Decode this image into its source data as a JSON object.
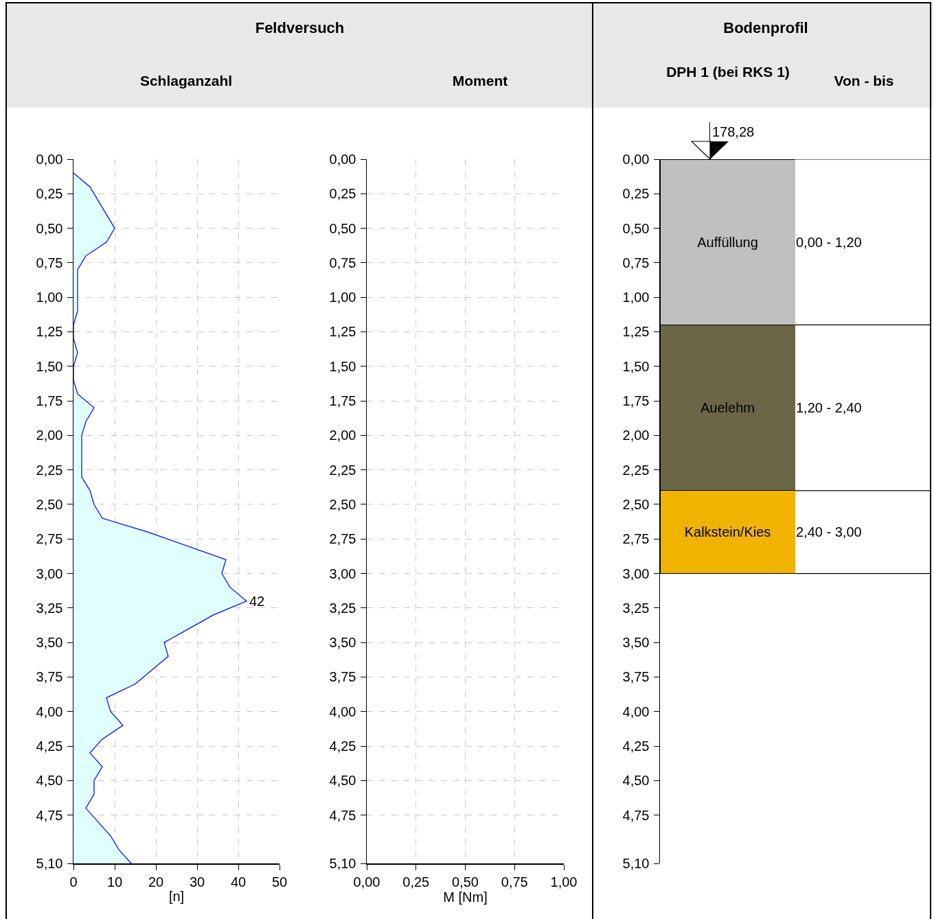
{
  "chart_data": [
    {
      "type": "area",
      "title": "Feldversuch",
      "subtitle": "Schlaganzahl",
      "xlabel": "[n]",
      "orientation": "horizontal",
      "x": [
        0.1,
        0.2,
        0.5,
        0.6,
        0.7,
        0.8,
        1.1,
        1.2,
        1.3,
        1.4,
        1.5,
        1.6,
        1.7,
        1.8,
        1.9,
        2.0,
        2.3,
        2.4,
        2.5,
        2.6,
        2.7,
        2.9,
        3.0,
        3.1,
        3.2,
        3.3,
        3.5,
        3.6,
        3.8,
        3.9,
        4.0,
        4.1,
        4.2,
        4.3,
        4.4,
        4.5,
        4.6,
        4.7,
        4.9,
        5.0,
        5.1
      ],
      "series": [
        {
          "color": "#0000ff",
          "values": [
            0,
            4,
            10,
            8,
            3,
            1,
            1,
            0,
            0,
            1,
            0,
            0,
            1,
            5,
            3,
            2,
            2,
            4,
            5,
            7,
            18,
            37,
            36,
            38,
            42,
            34,
            22,
            23,
            15,
            8,
            9,
            12,
            7,
            4,
            7,
            5,
            5,
            3,
            9,
            11,
            14
          ]
        }
      ],
      "annotations": [
        {
          "text": "42",
          "x": 42,
          "y": 3.2
        }
      ],
      "xlim": [
        0,
        50
      ],
      "xticks": [
        0,
        10,
        20,
        30,
        40,
        50
      ],
      "ylim": [
        5.1,
        0
      ],
      "yticks": [
        {
          "value": 0,
          "label": "0,00"
        },
        {
          "value": 0.25,
          "label": "0,25"
        },
        {
          "value": 0.5,
          "label": "0,50"
        },
        {
          "value": 0.75,
          "label": "0,75"
        },
        {
          "value": 1,
          "label": "1,00"
        },
        {
          "value": 1.25,
          "label": "1,25"
        },
        {
          "value": 1.5,
          "label": "1,50"
        },
        {
          "value": 1.75,
          "label": "1,75"
        },
        {
          "value": 2,
          "label": "2,00"
        },
        {
          "value": 2.25,
          "label": "2,25"
        },
        {
          "value": 2.5,
          "label": "2,50"
        },
        {
          "value": 2.75,
          "label": "2,75"
        },
        {
          "value": 3,
          "label": "3,00"
        },
        {
          "value": 3.25,
          "label": "3,25"
        },
        {
          "value": 3.5,
          "label": "3,50"
        },
        {
          "value": 3.75,
          "label": "3,75"
        },
        {
          "value": 4,
          "label": "4,00"
        },
        {
          "value": 4.25,
          "label": "4,25"
        },
        {
          "value": 4.5,
          "label": "4,50"
        },
        {
          "value": 4.75,
          "label": "4,75"
        },
        {
          "value": 5.1,
          "label": "5,10"
        }
      ],
      "grid": true
    },
    {
      "type": "line",
      "subtitle": "Moment",
      "xlabel": "M [Nm]",
      "xlim": [
        0,
        1
      ],
      "xticks": [
        {
          "value": 0,
          "label": "0,00"
        },
        {
          "value": 0.25,
          "label": "0,25"
        },
        {
          "value": 0.5,
          "label": "0,50"
        },
        {
          "value": 0.75,
          "label": "0,75"
        },
        {
          "value": 1,
          "label": "1,00"
        }
      ],
      "ylim": [
        5.1,
        0
      ],
      "yticks": [
        {
          "value": 0,
          "label": "0,00"
        },
        {
          "value": 0.25,
          "label": "0,25"
        },
        {
          "value": 0.5,
          "label": "0,50"
        },
        {
          "value": 0.75,
          "label": "0,75"
        },
        {
          "value": 1,
          "label": "1,00"
        },
        {
          "value": 1.25,
          "label": "1,25"
        },
        {
          "value": 1.5,
          "label": "1,50"
        },
        {
          "value": 1.75,
          "label": "1,75"
        },
        {
          "value": 2,
          "label": "2,00"
        },
        {
          "value": 2.25,
          "label": "2,25"
        },
        {
          "value": 2.5,
          "label": "2,50"
        },
        {
          "value": 2.75,
          "label": "2,75"
        },
        {
          "value": 3,
          "label": "3,00"
        },
        {
          "value": 3.25,
          "label": "3,25"
        },
        {
          "value": 3.5,
          "label": "3,50"
        },
        {
          "value": 3.75,
          "label": "3,75"
        },
        {
          "value": 4,
          "label": "4,00"
        },
        {
          "value": 4.25,
          "label": "4,25"
        },
        {
          "value": 4.5,
          "label": "4,50"
        },
        {
          "value": 4.75,
          "label": "4,75"
        },
        {
          "value": 5.1,
          "label": "5,10"
        }
      ],
      "grid": true
    },
    {
      "type": "bar",
      "title": "Bodenprofil",
      "subtitle": "DPH 1 (bei RKS 1)",
      "stacked": true,
      "categories": [
        null
      ],
      "series": [
        {
          "name": "Auffüllung",
          "color": "#c0c0c0",
          "values": [
            1.2
          ]
        },
        {
          "name": "Auelehm",
          "color": "#6b6645",
          "values": [
            1.2
          ]
        },
        {
          "name": "Kalkstein/Kies",
          "color": "#f0b400",
          "values": [
            0.6
          ]
        }
      ],
      "annotations": [
        "Von - bis",
        "178,28",
        "0,00 - 1,20",
        "1,20 - 2,40",
        "2,40 - 3,00"
      ],
      "ylim": [
        5.1,
        0
      ],
      "yticks": [
        {
          "value": 0,
          "label": "0,00"
        },
        {
          "value": 0.25,
          "label": "0,25"
        },
        {
          "value": 0.5,
          "label": "0,50"
        },
        {
          "value": 0.75,
          "label": "0,75"
        },
        {
          "value": 1,
          "label": "1,00"
        },
        {
          "value": 1.25,
          "label": "1,25"
        },
        {
          "value": 1.5,
          "label": "1,50"
        },
        {
          "value": 1.75,
          "label": "1,75"
        },
        {
          "value": 2,
          "label": "2,00"
        },
        {
          "value": 2.25,
          "label": "2,25"
        },
        {
          "value": 2.5,
          "label": "2,50"
        },
        {
          "value": 2.75,
          "label": "2,75"
        },
        {
          "value": 3,
          "label": "3,00"
        },
        {
          "value": 3.25,
          "label": "3,25"
        },
        {
          "value": 3.5,
          "label": "3,50"
        },
        {
          "value": 3.75,
          "label": "3,75"
        },
        {
          "value": 4,
          "label": "4,00"
        },
        {
          "value": 4.25,
          "label": "4,25"
        },
        {
          "value": 4.5,
          "label": "4,50"
        },
        {
          "value": 4.75,
          "label": "4,75"
        },
        {
          "value": 5.1,
          "label": "5,10"
        }
      ],
      "grid": false
    }
  ]
}
